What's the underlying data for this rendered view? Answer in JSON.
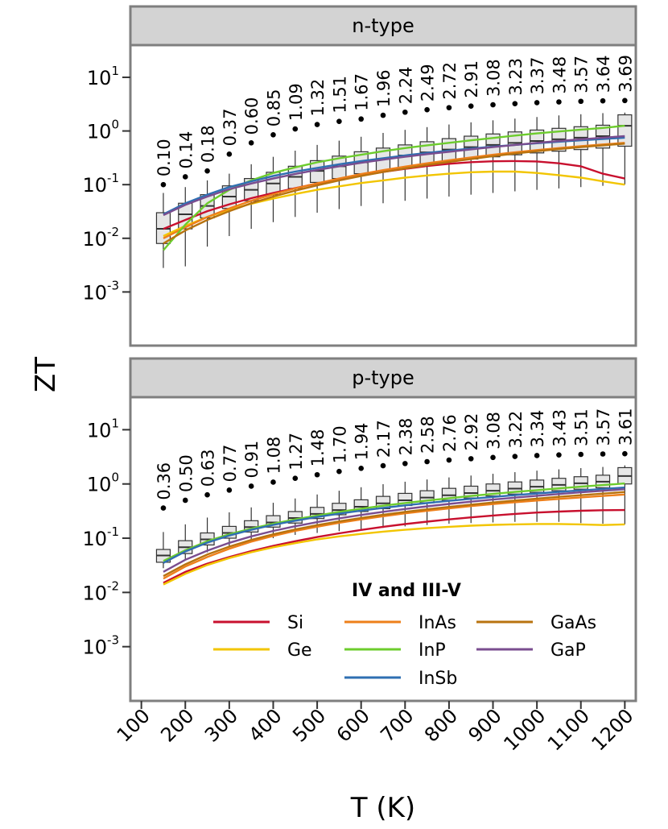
{
  "chart_data": {
    "type": "box_line",
    "xlabel": "T (K)",
    "ylabel": "ZT",
    "x_ticks": [
      100,
      200,
      300,
      400,
      500,
      600,
      700,
      800,
      900,
      1000,
      1100,
      1200
    ],
    "xlim": [
      75,
      1225
    ],
    "ylim_log10": [
      -4.0,
      1.6
    ],
    "y_ticks": [
      {
        "base": "10",
        "exp": "1",
        "log": 1
      },
      {
        "base": "10",
        "exp": "0",
        "log": 0
      },
      {
        "base": "10",
        "exp": "-1",
        "log": -1
      },
      {
        "base": "10",
        "exp": "-2",
        "log": -2
      },
      {
        "base": "10",
        "exp": "-3",
        "log": -3
      }
    ],
    "temperatures": [
      150,
      200,
      250,
      300,
      350,
      400,
      450,
      500,
      550,
      600,
      650,
      700,
      750,
      800,
      850,
      900,
      950,
      1000,
      1050,
      1100,
      1150,
      1200
    ],
    "legend": {
      "title": "IV and III-V",
      "entries": [
        {
          "name": "Si",
          "color": "#c8102e"
        },
        {
          "name": "Ge",
          "color": "#f2c500"
        },
        {
          "name": "InAs",
          "color": "#ee7f1a"
        },
        {
          "name": "InP",
          "color": "#6dcc2d"
        },
        {
          "name": "InSb",
          "color": "#2f6fb2"
        },
        {
          "name": "GaAs",
          "color": "#b8730f"
        },
        {
          "name": "GaP",
          "color": "#7a4d8f"
        }
      ]
    },
    "panels": [
      {
        "facet": "n-type",
        "max_labels": [
          "0.10",
          "0.14",
          "0.18",
          "0.37",
          "0.60",
          "0.85",
          "1.09",
          "1.32",
          "1.51",
          "1.67",
          "1.96",
          "2.24",
          "2.49",
          "2.72",
          "2.91",
          "3.08",
          "3.23",
          "3.37",
          "3.48",
          "3.57",
          "3.64",
          "3.69"
        ],
        "max_values": [
          0.1,
          0.14,
          0.18,
          0.37,
          0.6,
          0.85,
          1.09,
          1.32,
          1.51,
          1.67,
          1.96,
          2.24,
          2.49,
          2.72,
          2.91,
          3.08,
          3.23,
          3.37,
          3.48,
          3.57,
          3.64,
          3.69
        ],
        "boxes": [
          {
            "low": 0.0028,
            "q1": 0.008,
            "median": 0.015,
            "q3": 0.03,
            "high": 0.07
          },
          {
            "low": 0.003,
            "q1": 0.015,
            "median": 0.028,
            "q3": 0.045,
            "high": 0.09
          },
          {
            "low": 0.007,
            "q1": 0.024,
            "median": 0.04,
            "q3": 0.065,
            "high": 0.12
          },
          {
            "low": 0.011,
            "q1": 0.036,
            "median": 0.06,
            "q3": 0.095,
            "high": 0.16
          },
          {
            "low": 0.015,
            "q1": 0.05,
            "median": 0.08,
            "q3": 0.13,
            "high": 0.24
          },
          {
            "low": 0.02,
            "q1": 0.065,
            "median": 0.105,
            "q3": 0.17,
            "high": 0.33
          },
          {
            "low": 0.025,
            "q1": 0.085,
            "median": 0.14,
            "q3": 0.22,
            "high": 0.43
          },
          {
            "low": 0.03,
            "q1": 0.11,
            "median": 0.18,
            "q3": 0.28,
            "high": 0.55
          },
          {
            "low": 0.035,
            "q1": 0.13,
            "median": 0.22,
            "q3": 0.34,
            "high": 0.66
          },
          {
            "low": 0.04,
            "q1": 0.16,
            "median": 0.26,
            "q3": 0.41,
            "high": 0.78
          },
          {
            "low": 0.045,
            "q1": 0.18,
            "median": 0.3,
            "q3": 0.48,
            "high": 0.92
          },
          {
            "low": 0.05,
            "q1": 0.21,
            "median": 0.35,
            "q3": 0.55,
            "high": 1.05
          },
          {
            "low": 0.055,
            "q1": 0.24,
            "median": 0.4,
            "q3": 0.63,
            "high": 1.18
          },
          {
            "low": 0.06,
            "q1": 0.27,
            "median": 0.45,
            "q3": 0.72,
            "high": 1.32
          },
          {
            "low": 0.065,
            "q1": 0.3,
            "median": 0.5,
            "q3": 0.8,
            "high": 1.45
          },
          {
            "low": 0.07,
            "q1": 0.33,
            "median": 0.55,
            "q3": 0.88,
            "high": 1.58
          },
          {
            "low": 0.075,
            "q1": 0.36,
            "median": 0.6,
            "q3": 0.96,
            "high": 1.7
          },
          {
            "low": 0.08,
            "q1": 0.39,
            "median": 0.65,
            "q3": 1.04,
            "high": 1.82
          },
          {
            "low": 0.085,
            "q1": 0.42,
            "median": 0.7,
            "q3": 1.12,
            "high": 1.95
          },
          {
            "low": 0.09,
            "q1": 0.45,
            "median": 0.75,
            "q3": 1.2,
            "high": 2.05
          },
          {
            "low": 0.095,
            "q1": 0.48,
            "median": 0.8,
            "q3": 1.28,
            "high": 2.15
          },
          {
            "low": 0.1,
            "q1": 0.52,
            "median": 1.25,
            "q3": 2.0,
            "high": 2.2
          }
        ],
        "series": [
          {
            "name": "Si",
            "color": "#c8102e",
            "values": [
              0.015,
              0.022,
              0.032,
              0.043,
              0.056,
              0.07,
              0.086,
              0.105,
              0.125,
              0.148,
              0.172,
              0.197,
              0.222,
              0.245,
              0.262,
              0.272,
              0.275,
              0.27,
              0.25,
              0.22,
              0.16,
              0.13
            ]
          },
          {
            "name": "Ge",
            "color": "#f2c500",
            "values": [
              0.011,
              0.017,
              0.025,
              0.034,
              0.044,
              0.055,
              0.067,
              0.08,
              0.093,
              0.107,
              0.12,
              0.135,
              0.148,
              0.16,
              0.17,
              0.175,
              0.175,
              0.165,
              0.15,
              0.135,
              0.115,
              0.1
            ]
          },
          {
            "name": "InAs",
            "color": "#ee7f1a",
            "values": [
              0.01,
              0.016,
              0.025,
              0.036,
              0.05,
              0.066,
              0.085,
              0.106,
              0.13,
              0.157,
              0.186,
              0.217,
              0.25,
              0.285,
              0.32,
              0.36,
              0.4,
              0.44,
              0.48,
              0.52,
              0.56,
              0.6
            ]
          },
          {
            "name": "InP",
            "color": "#6dcc2d",
            "values": [
              0.006,
              0.018,
              0.045,
              0.08,
              0.12,
              0.165,
              0.21,
              0.26,
              0.31,
              0.36,
              0.42,
              0.48,
              0.54,
              0.6,
              0.67,
              0.74,
              0.82,
              0.9,
              0.98,
              1.06,
              1.14,
              1.25
            ]
          },
          {
            "name": "InSb",
            "color": "#2f6fb2",
            "values": [
              0.028,
              0.045,
              0.065,
              0.09,
              0.115,
              0.145,
              0.175,
              0.205,
              0.24,
              0.275,
              0.31,
              0.35,
              0.39,
              0.43,
              0.47,
              0.51,
              0.55,
              0.59,
              0.63,
              0.67,
              0.71,
              0.75
            ]
          },
          {
            "name": "GaAs",
            "color": "#b8730f",
            "values": [
              0.008,
              0.014,
              0.022,
              0.032,
              0.045,
              0.06,
              0.077,
              0.097,
              0.12,
              0.145,
              0.172,
              0.2,
              0.232,
              0.265,
              0.3,
              0.34,
              0.38,
              0.42,
              0.46,
              0.5,
              0.54,
              0.58
            ]
          },
          {
            "name": "GaP",
            "color": "#7a4d8f",
            "values": [
              0.027,
              0.042,
              0.06,
              0.082,
              0.105,
              0.13,
              0.158,
              0.188,
              0.22,
              0.255,
              0.292,
              0.33,
              0.37,
              0.41,
              0.455,
              0.5,
              0.55,
              0.6,
              0.65,
              0.7,
              0.75,
              0.8
            ]
          }
        ]
      },
      {
        "facet": "p-type",
        "max_labels": [
          "0.36",
          "0.50",
          "0.63",
          "0.77",
          "0.91",
          "1.08",
          "1.27",
          "1.48",
          "1.70",
          "1.94",
          "2.17",
          "2.38",
          "2.58",
          "2.76",
          "2.92",
          "3.08",
          "3.22",
          "3.34",
          "3.43",
          "3.51",
          "3.57",
          "3.61"
        ],
        "max_values": [
          0.36,
          0.5,
          0.63,
          0.77,
          0.91,
          1.08,
          1.27,
          1.48,
          1.7,
          1.94,
          2.17,
          2.38,
          2.58,
          2.76,
          2.92,
          3.08,
          3.22,
          3.34,
          3.43,
          3.51,
          3.57,
          3.61
        ],
        "boxes": [
          {
            "low": 0.028,
            "q1": 0.036,
            "median": 0.048,
            "q3": 0.062,
            "high": 0.13
          },
          {
            "low": 0.04,
            "q1": 0.052,
            "median": 0.068,
            "q3": 0.09,
            "high": 0.18
          },
          {
            "low": 0.055,
            "q1": 0.075,
            "median": 0.095,
            "q3": 0.125,
            "high": 0.24
          },
          {
            "low": 0.07,
            "q1": 0.1,
            "median": 0.125,
            "q3": 0.165,
            "high": 0.3
          },
          {
            "low": 0.085,
            "q1": 0.13,
            "median": 0.16,
            "q3": 0.21,
            "high": 0.37
          },
          {
            "low": 0.1,
            "q1": 0.16,
            "median": 0.195,
            "q3": 0.26,
            "high": 0.45
          },
          {
            "low": 0.115,
            "q1": 0.19,
            "median": 0.235,
            "q3": 0.31,
            "high": 0.54
          },
          {
            "low": 0.125,
            "q1": 0.23,
            "median": 0.28,
            "q3": 0.37,
            "high": 0.64
          },
          {
            "low": 0.135,
            "q1": 0.27,
            "median": 0.33,
            "q3": 0.44,
            "high": 0.75
          },
          {
            "low": 0.145,
            "q1": 0.31,
            "median": 0.38,
            "q3": 0.51,
            "high": 0.87
          },
          {
            "low": 0.155,
            "q1": 0.35,
            "median": 0.44,
            "q3": 0.59,
            "high": 0.99
          },
          {
            "low": 0.165,
            "q1": 0.4,
            "median": 0.5,
            "q3": 0.67,
            "high": 1.1
          },
          {
            "low": 0.175,
            "q1": 0.45,
            "median": 0.56,
            "q3": 0.75,
            "high": 1.21
          },
          {
            "low": 0.185,
            "q1": 0.5,
            "median": 0.62,
            "q3": 0.83,
            "high": 1.32
          },
          {
            "low": 0.19,
            "q1": 0.55,
            "median": 0.68,
            "q3": 0.91,
            "high": 1.43
          },
          {
            "low": 0.195,
            "q1": 0.6,
            "median": 0.75,
            "q3": 1.0,
            "high": 1.54
          },
          {
            "low": 0.2,
            "q1": 0.65,
            "median": 0.82,
            "q3": 1.09,
            "high": 1.65
          },
          {
            "low": 0.2,
            "q1": 0.7,
            "median": 0.89,
            "q3": 1.18,
            "high": 1.76
          },
          {
            "low": 0.2,
            "q1": 0.75,
            "median": 0.96,
            "q3": 1.27,
            "high": 1.86
          },
          {
            "low": 0.19,
            "q1": 0.8,
            "median": 1.03,
            "q3": 1.36,
            "high": 1.96
          },
          {
            "low": 0.185,
            "q1": 0.85,
            "median": 1.1,
            "q3": 1.45,
            "high": 2.06
          },
          {
            "low": 0.18,
            "q1": 1.0,
            "median": 1.4,
            "q3": 2.0,
            "high": 2.2
          }
        ],
        "series": [
          {
            "name": "Si",
            "color": "#c8102e",
            "values": [
              0.015,
              0.024,
              0.034,
              0.045,
              0.058,
              0.072,
              0.088,
              0.105,
              0.123,
              0.142,
              0.162,
              0.182,
              0.202,
              0.222,
              0.242,
              0.262,
              0.28,
              0.297,
              0.31,
              0.32,
              0.328,
              0.33
            ]
          },
          {
            "name": "Ge",
            "color": "#f2c500",
            "values": [
              0.014,
              0.022,
              0.032,
              0.043,
              0.055,
              0.068,
              0.081,
              0.095,
              0.108,
              0.12,
              0.132,
              0.143,
              0.153,
              0.162,
              0.17,
              0.176,
              0.18,
              0.183,
              0.183,
              0.18,
              0.175,
              0.18
            ]
          },
          {
            "name": "InAs",
            "color": "#ee7f1a",
            "values": [
              0.018,
              0.03,
              0.045,
              0.064,
              0.086,
              0.11,
              0.136,
              0.163,
              0.192,
              0.222,
              0.254,
              0.287,
              0.32,
              0.355,
              0.39,
              0.425,
              0.46,
              0.495,
              0.53,
              0.565,
              0.6,
              0.64
            ]
          },
          {
            "name": "InP",
            "color": "#6dcc2d",
            "values": [
              0.038,
              0.06,
              0.088,
              0.118,
              0.15,
              0.185,
              0.222,
              0.262,
              0.305,
              0.35,
              0.397,
              0.445,
              0.495,
              0.547,
              0.6,
              0.655,
              0.712,
              0.77,
              0.83,
              0.892,
              0.955,
              1.02
            ]
          },
          {
            "name": "InSb",
            "color": "#2f6fb2",
            "values": [
              0.035,
              0.057,
              0.083,
              0.112,
              0.143,
              0.176,
              0.21,
              0.246,
              0.283,
              0.322,
              0.362,
              0.403,
              0.445,
              0.488,
              0.532,
              0.577,
              0.622,
              0.668,
              0.715,
              0.762,
              0.81,
              0.86
            ]
          },
          {
            "name": "GaAs",
            "color": "#b8730f",
            "values": [
              0.02,
              0.033,
              0.05,
              0.07,
              0.093,
              0.118,
              0.145,
              0.174,
              0.204,
              0.236,
              0.27,
              0.305,
              0.341,
              0.378,
              0.416,
              0.455,
              0.495,
              0.536,
              0.578,
              0.62,
              0.664,
              0.71
            ]
          },
          {
            "name": "GaP",
            "color": "#7a4d8f",
            "values": [
              0.024,
              0.04,
              0.059,
              0.082,
              0.108,
              0.136,
              0.166,
              0.198,
              0.232,
              0.268,
              0.306,
              0.345,
              0.386,
              0.428,
              0.471,
              0.515,
              0.56,
              0.606,
              0.653,
              0.7,
              0.748,
              0.8
            ]
          }
        ]
      }
    ]
  }
}
